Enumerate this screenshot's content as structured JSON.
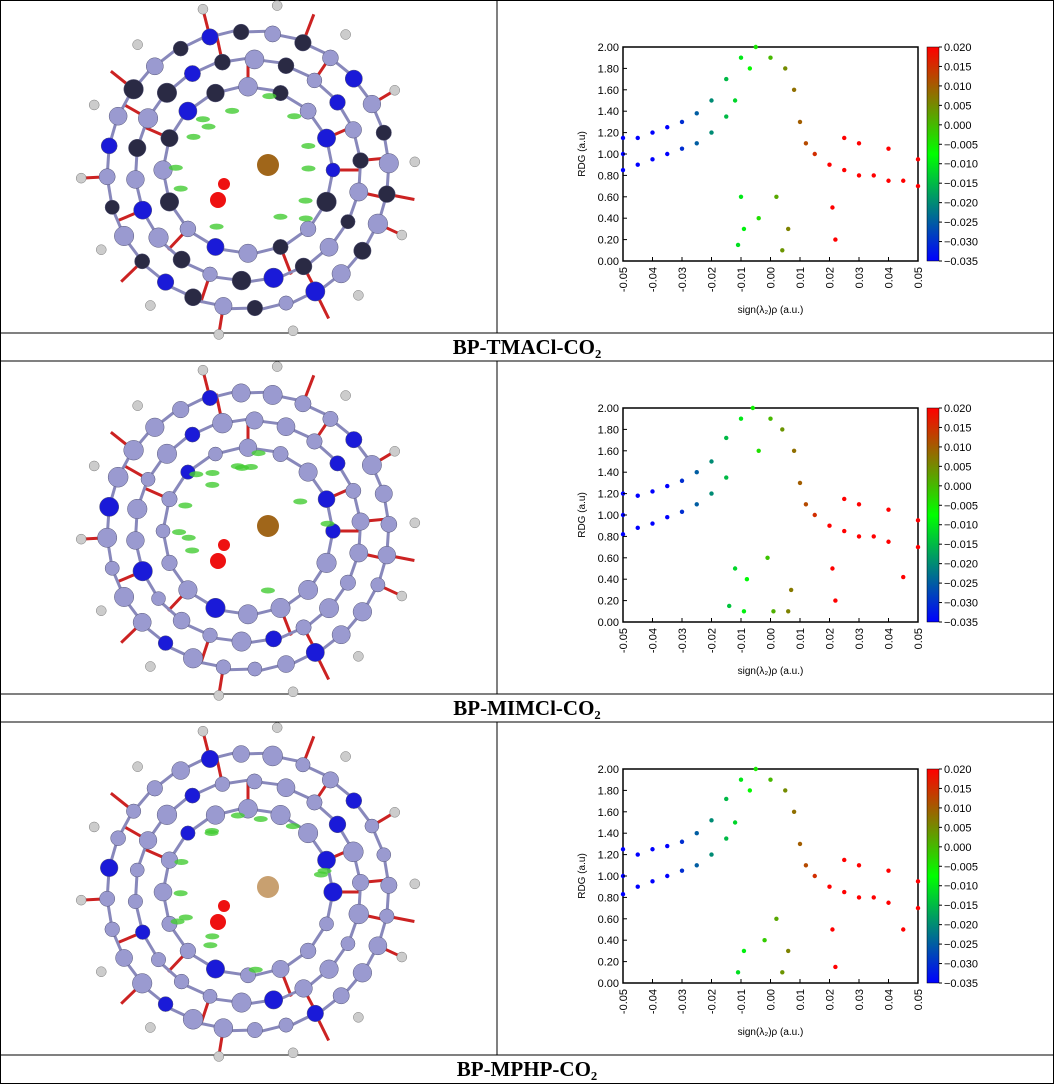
{
  "captions": [
    "BP-TMACl-CO₂",
    "BP-MIMCl-CO₂",
    "BP-MPHP-CO₂"
  ],
  "chart_data": [
    {
      "type": "scatter",
      "xlabel": "sign(λ₂)ρ (a.u.)",
      "ylabel": "RDG (a.u)",
      "xlim": [
        -0.05,
        0.05
      ],
      "ylim": [
        0,
        2
      ],
      "xticks": [
        -0.05,
        -0.04,
        -0.03,
        -0.02,
        -0.01,
        {
          "value": 0,
          "label": "0.00"
        },
        0.01,
        0.02,
        0.03,
        0.04,
        0.05
      ],
      "yticks": [
        {
          "value": 0,
          "label": "0.00"
        },
        {
          "value": 0.2,
          "label": "0.20"
        },
        {
          "value": 0.4,
          "label": "0.40"
        },
        {
          "value": 0.6,
          "label": "0.60"
        },
        {
          "value": 0.8,
          "label": "0.80"
        },
        {
          "value": 1,
          "label": "1.00"
        },
        {
          "value": 1.2,
          "label": "1.20"
        },
        {
          "value": 1.4,
          "label": "1.40"
        },
        {
          "value": 1.6,
          "label": "1.60"
        },
        {
          "value": 1.8,
          "label": "1.80"
        },
        {
          "value": 2,
          "label": "2.00"
        }
      ],
      "colormap": [
        "#0000ff",
        "#00ff00",
        "#ff0000"
      ],
      "clim": [
        -0.035,
        0.02
      ],
      "cticks": [
        {
          "value": 0.02,
          "label": "0.020"
        },
        {
          "value": 0.015,
          "label": "0.015"
        },
        {
          "value": 0.01,
          "label": "0.010"
        },
        {
          "value": 0.005,
          "label": "0.005"
        },
        {
          "value": 0,
          "label": "0.000"
        },
        {
          "value": -0.005,
          "label": "−0.005"
        },
        {
          "value": -0.01,
          "label": "−0.010"
        },
        {
          "value": -0.015,
          "label": "−0.015"
        },
        {
          "value": -0.02,
          "label": "−0.020"
        },
        {
          "value": -0.025,
          "label": "−0.025"
        },
        {
          "value": -0.03,
          "label": "−0.030"
        },
        {
          "value": -0.035,
          "label": "−0.035"
        }
      ],
      "x": [
        -0.05,
        -0.05,
        -0.05,
        -0.045,
        -0.045,
        -0.04,
        -0.04,
        -0.035,
        -0.035,
        -0.03,
        -0.03,
        -0.025,
        -0.025,
        -0.02,
        -0.02,
        -0.015,
        -0.015,
        -0.012,
        -0.01,
        -0.01,
        -0.011,
        -0.009,
        -0.007,
        -0.005,
        -0.004,
        0.0,
        0.002,
        0.004,
        0.005,
        0.006,
        0.008,
        0.01,
        0.012,
        0.015,
        0.02,
        0.022,
        0.021,
        0.025,
        0.025,
        0.03,
        0.03,
        0.035,
        0.04,
        0.04,
        0.045,
        0.05,
        0.05
      ],
      "values": [
        1.0,
        0.85,
        1.15,
        0.9,
        1.15,
        0.95,
        1.2,
        1.0,
        1.25,
        1.05,
        1.3,
        1.1,
        1.38,
        1.2,
        1.5,
        1.35,
        1.7,
        1.5,
        1.9,
        0.6,
        0.15,
        0.3,
        1.8,
        2.0,
        0.4,
        1.9,
        0.6,
        0.1,
        1.8,
        0.3,
        1.6,
        1.3,
        1.1,
        1.0,
        0.9,
        0.2,
        0.5,
        0.85,
        1.15,
        0.8,
        1.1,
        0.8,
        0.75,
        1.05,
        0.75,
        0.7,
        0.95
      ]
    },
    {
      "type": "scatter",
      "xlabel": "sign(λ₂)ρ (a.u.)",
      "ylabel": "RDG (a.u)",
      "xlim": [
        -0.05,
        0.05
      ],
      "ylim": [
        0,
        2
      ],
      "xticks": [
        -0.05,
        -0.04,
        -0.03,
        -0.02,
        -0.01,
        {
          "value": 0,
          "label": "0.00"
        },
        0.01,
        0.02,
        0.03,
        0.04,
        0.05
      ],
      "yticks": [
        {
          "value": 0,
          "label": "0.00"
        },
        {
          "value": 0.2,
          "label": "0.20"
        },
        {
          "value": 0.4,
          "label": "0.40"
        },
        {
          "value": 0.6,
          "label": "0.60"
        },
        {
          "value": 0.8,
          "label": "0.80"
        },
        {
          "value": 1,
          "label": "1.00"
        },
        {
          "value": 1.2,
          "label": "1.20"
        },
        {
          "value": 1.4,
          "label": "1.40"
        },
        {
          "value": 1.6,
          "label": "1.60"
        },
        {
          "value": 1.8,
          "label": "1.80"
        },
        {
          "value": 2,
          "label": "2.00"
        }
      ],
      "colormap": [
        "#0000ff",
        "#00ff00",
        "#ff0000"
      ],
      "clim": [
        -0.035,
        0.02
      ],
      "cticks": [
        {
          "value": 0.02,
          "label": "0.020"
        },
        {
          "value": 0.015,
          "label": "0.015"
        },
        {
          "value": 0.01,
          "label": "0.010"
        },
        {
          "value": 0.005,
          "label": "0.005"
        },
        {
          "value": 0,
          "label": "0.000"
        },
        {
          "value": -0.005,
          "label": "−0.005"
        },
        {
          "value": -0.01,
          "label": "−0.010"
        },
        {
          "value": -0.015,
          "label": "−0.015"
        },
        {
          "value": -0.02,
          "label": "−0.020"
        },
        {
          "value": -0.025,
          "label": "−0.025"
        },
        {
          "value": -0.03,
          "label": "−0.030"
        },
        {
          "value": -0.035,
          "label": "−0.035"
        }
      ],
      "x": [
        -0.05,
        -0.05,
        -0.05,
        -0.045,
        -0.045,
        -0.04,
        -0.04,
        -0.035,
        -0.035,
        -0.03,
        -0.03,
        -0.025,
        -0.025,
        -0.02,
        -0.02,
        -0.015,
        -0.015,
        -0.014,
        -0.012,
        -0.01,
        -0.009,
        -0.008,
        -0.006,
        -0.004,
        -0.001,
        0.0,
        0.001,
        0.004,
        0.006,
        0.007,
        0.008,
        0.01,
        0.012,
        0.015,
        0.02,
        0.022,
        0.021,
        0.025,
        0.025,
        0.03,
        0.03,
        0.035,
        0.04,
        0.04,
        0.045,
        0.05,
        0.05
      ],
      "values": [
        1.0,
        0.82,
        1.2,
        0.88,
        1.18,
        0.92,
        1.22,
        0.98,
        1.27,
        1.03,
        1.32,
        1.1,
        1.4,
        1.2,
        1.5,
        1.35,
        1.72,
        0.15,
        0.5,
        1.9,
        0.1,
        0.4,
        2.0,
        1.6,
        0.6,
        1.9,
        0.1,
        1.8,
        0.1,
        0.3,
        1.6,
        1.3,
        1.1,
        1.0,
        0.9,
        0.2,
        0.5,
        0.85,
        1.15,
        0.8,
        1.1,
        0.8,
        0.75,
        1.05,
        0.42,
        0.7,
        0.95
      ]
    },
    {
      "type": "scatter",
      "xlabel": "sign(λ₂)ρ (a.u.)",
      "ylabel": "RDG (a.u)",
      "xlim": [
        -0.05,
        0.05
      ],
      "ylim": [
        0,
        2
      ],
      "xticks": [
        -0.05,
        -0.04,
        -0.03,
        -0.02,
        -0.01,
        {
          "value": 0,
          "label": "0.00"
        },
        0.01,
        0.02,
        0.03,
        0.04,
        0.05
      ],
      "yticks": [
        {
          "value": 0,
          "label": "0.00"
        },
        {
          "value": 0.2,
          "label": "0.20"
        },
        {
          "value": 0.4,
          "label": "0.40"
        },
        {
          "value": 0.6,
          "label": "0.60"
        },
        {
          "value": 0.8,
          "label": "0.80"
        },
        {
          "value": 1,
          "label": "1.00"
        },
        {
          "value": 1.2,
          "label": "1.20"
        },
        {
          "value": 1.4,
          "label": "1.40"
        },
        {
          "value": 1.6,
          "label": "1.60"
        },
        {
          "value": 1.8,
          "label": "1.80"
        },
        {
          "value": 2,
          "label": "2.00"
        }
      ],
      "colormap": [
        "#0000ff",
        "#00ff00",
        "#ff0000"
      ],
      "clim": [
        -0.035,
        0.02
      ],
      "cticks": [
        {
          "value": 0.02,
          "label": "0.020"
        },
        {
          "value": 0.015,
          "label": "0.015"
        },
        {
          "value": 0.01,
          "label": "0.010"
        },
        {
          "value": 0.005,
          "label": "0.005"
        },
        {
          "value": 0,
          "label": "0.000"
        },
        {
          "value": -0.005,
          "label": "−0.005"
        },
        {
          "value": -0.01,
          "label": "−0.010"
        },
        {
          "value": -0.015,
          "label": "−0.015"
        },
        {
          "value": -0.02,
          "label": "−0.020"
        },
        {
          "value": -0.025,
          "label": "−0.025"
        },
        {
          "value": -0.03,
          "label": "−0.030"
        },
        {
          "value": -0.035,
          "label": "−0.035"
        }
      ],
      "x": [
        -0.05,
        -0.05,
        -0.05,
        -0.045,
        -0.045,
        -0.04,
        -0.04,
        -0.035,
        -0.035,
        -0.03,
        -0.03,
        -0.025,
        -0.025,
        -0.02,
        -0.02,
        -0.015,
        -0.015,
        -0.012,
        -0.01,
        -0.011,
        -0.009,
        -0.007,
        -0.005,
        -0.002,
        0.0,
        0.002,
        0.004,
        0.005,
        0.006,
        0.008,
        0.01,
        0.012,
        0.015,
        0.02,
        0.022,
        0.021,
        0.025,
        0.025,
        0.03,
        0.03,
        0.035,
        0.04,
        0.04,
        0.045,
        0.05,
        0.05
      ],
      "values": [
        1.0,
        0.83,
        1.25,
        0.9,
        1.2,
        0.95,
        1.25,
        1.0,
        1.28,
        1.05,
        1.32,
        1.1,
        1.4,
        1.2,
        1.52,
        1.35,
        1.72,
        1.5,
        1.9,
        0.1,
        0.3,
        1.8,
        2.0,
        0.4,
        1.9,
        0.6,
        0.1,
        1.8,
        0.3,
        1.6,
        1.3,
        1.1,
        1.0,
        0.9,
        0.15,
        0.5,
        0.85,
        1.15,
        0.8,
        1.1,
        0.8,
        0.75,
        1.05,
        0.5,
        0.7,
        0.95
      ]
    }
  ]
}
